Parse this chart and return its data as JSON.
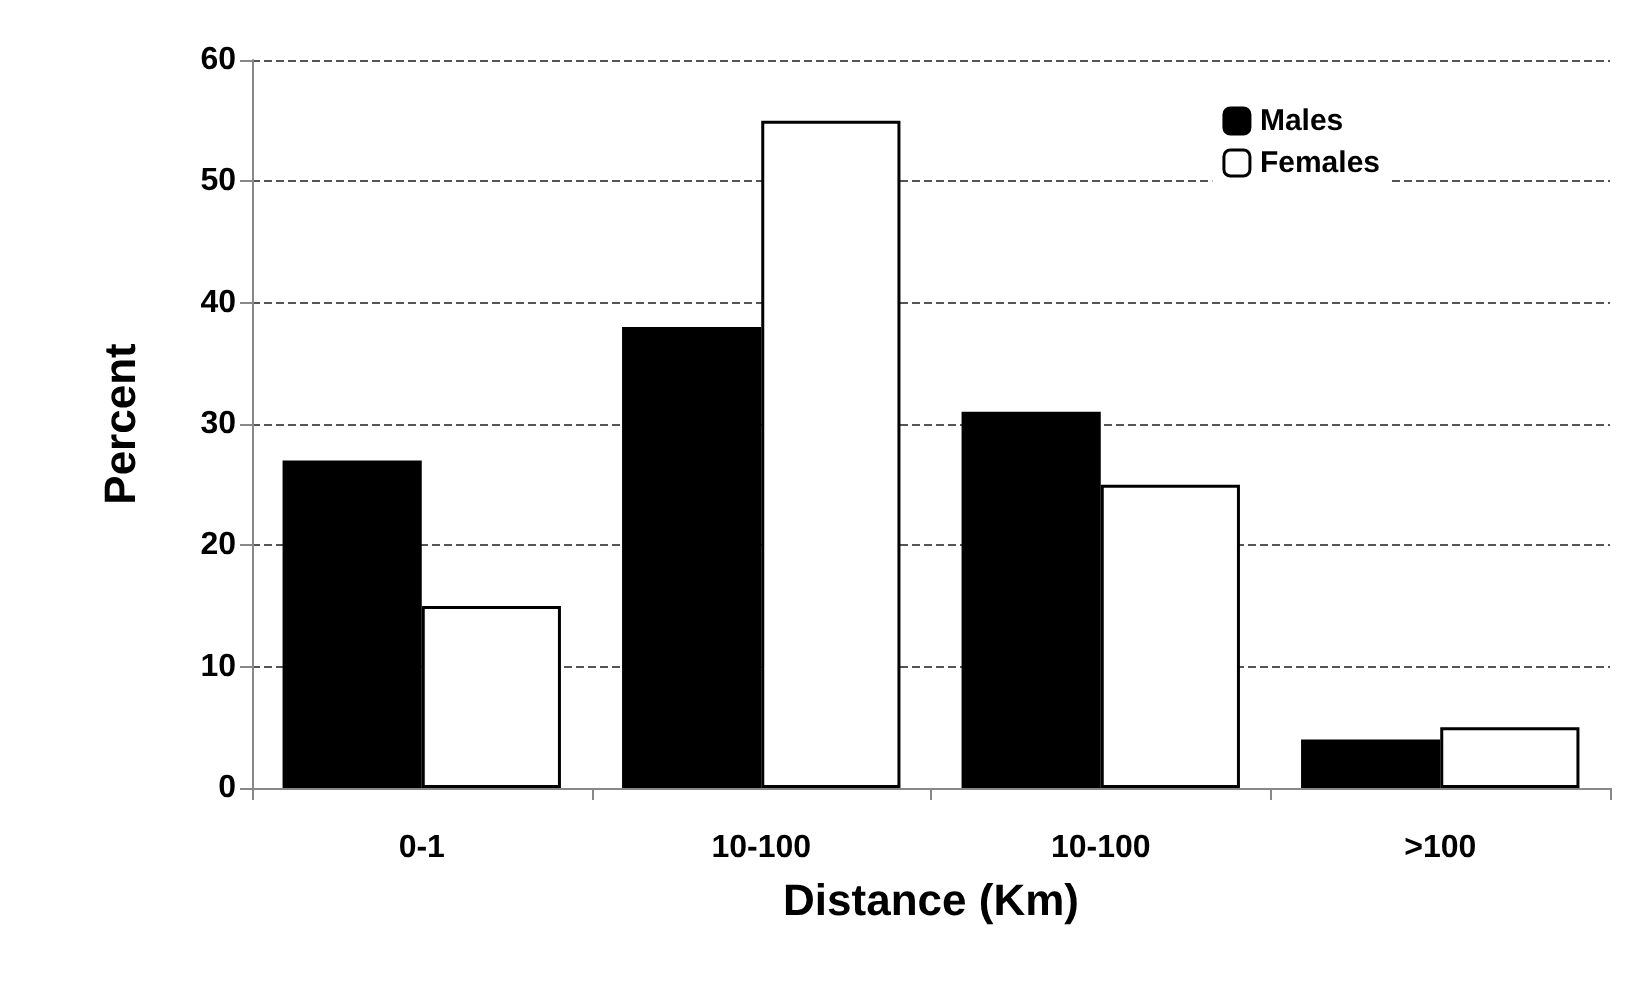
{
  "chart_data": {
    "type": "bar",
    "xlabel": "Distance (Km)",
    "ylabel": "Percent",
    "categories": [
      "0-1",
      "10-100",
      "10-100",
      ">100"
    ],
    "series": [
      {
        "name": "Males",
        "color": "#000000",
        "values": [
          27,
          38,
          31,
          4
        ]
      },
      {
        "name": "Females",
        "color": "#ffffff",
        "values": [
          15,
          55,
          25,
          5
        ]
      }
    ],
    "ylim": [
      0,
      60
    ],
    "yticks": [
      0,
      10,
      20,
      30,
      40,
      50,
      60
    ],
    "grid": "y",
    "legend": "top right"
  }
}
